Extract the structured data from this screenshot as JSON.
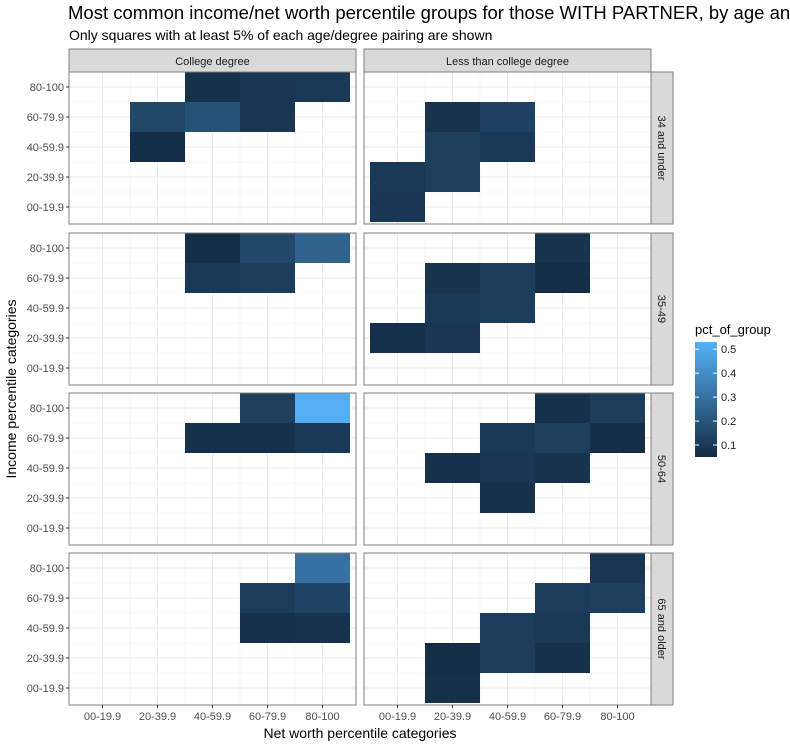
{
  "chart_data": {
    "type": "heatmap",
    "title": "Most common income/net worth percentile groups for those WITH PARTNER, by age and education",
    "subtitle": "Only squares with at least 5% of each age/degree pairing are shown",
    "xlabel": "Net worth percentile categories",
    "ylabel": "Income percentile categories",
    "x_categories": [
      "00-19.9",
      "20-39.9",
      "40-59.9",
      "60-79.9",
      "80-100"
    ],
    "y_categories": [
      "00-19.9",
      "20-39.9",
      "40-59.9",
      "60-79.9",
      "80-100"
    ],
    "column_facets": [
      "College degree",
      "Less than college degree"
    ],
    "row_facets": [
      "34 and under",
      "35-49",
      "50-64",
      "65 and older"
    ],
    "legend": {
      "title": "pct_of_group",
      "ticks": [
        0.1,
        0.2,
        0.3,
        0.4,
        0.5
      ],
      "low": 0.05,
      "high": 0.53,
      "low_color": "#132B43",
      "high_color": "#56B1F7",
      "placement": "right"
    },
    "grid": true,
    "panels": [
      {
        "col": "College degree",
        "row": "34 and under",
        "cells": [
          {
            "x": "40-59.9",
            "y": "80-100",
            "value": 0.07
          },
          {
            "x": "60-79.9",
            "y": "80-100",
            "value": 0.09
          },
          {
            "x": "80-100",
            "y": "80-100",
            "value": 0.1
          },
          {
            "x": "20-39.9",
            "y": "60-79.9",
            "value": 0.15
          },
          {
            "x": "40-59.9",
            "y": "60-79.9",
            "value": 0.19
          },
          {
            "x": "60-79.9",
            "y": "60-79.9",
            "value": 0.09
          },
          {
            "x": "20-39.9",
            "y": "40-59.9",
            "value": 0.06
          }
        ]
      },
      {
        "col": "Less than college degree",
        "row": "34 and under",
        "cells": [
          {
            "x": "20-39.9",
            "y": "60-79.9",
            "value": 0.08
          },
          {
            "x": "40-59.9",
            "y": "60-79.9",
            "value": 0.13
          },
          {
            "x": "20-39.9",
            "y": "40-59.9",
            "value": 0.12
          },
          {
            "x": "40-59.9",
            "y": "40-59.9",
            "value": 0.1
          },
          {
            "x": "00-19.9",
            "y": "20-39.9",
            "value": 0.1
          },
          {
            "x": "20-39.9",
            "y": "20-39.9",
            "value": 0.12
          },
          {
            "x": "00-19.9",
            "y": "00-19.9",
            "value": 0.09
          }
        ]
      },
      {
        "col": "College degree",
        "row": "35-49",
        "cells": [
          {
            "x": "40-59.9",
            "y": "80-100",
            "value": 0.06
          },
          {
            "x": "60-79.9",
            "y": "80-100",
            "value": 0.15
          },
          {
            "x": "80-100",
            "y": "80-100",
            "value": 0.25
          },
          {
            "x": "40-59.9",
            "y": "60-79.9",
            "value": 0.1
          },
          {
            "x": "60-79.9",
            "y": "60-79.9",
            "value": 0.11
          }
        ]
      },
      {
        "col": "Less than college degree",
        "row": "35-49",
        "cells": [
          {
            "x": "60-79.9",
            "y": "80-100",
            "value": 0.08
          },
          {
            "x": "20-39.9",
            "y": "60-79.9",
            "value": 0.08
          },
          {
            "x": "40-59.9",
            "y": "60-79.9",
            "value": 0.11
          },
          {
            "x": "60-79.9",
            "y": "60-79.9",
            "value": 0.06
          },
          {
            "x": "20-39.9",
            "y": "40-59.9",
            "value": 0.1
          },
          {
            "x": "40-59.9",
            "y": "40-59.9",
            "value": 0.11
          },
          {
            "x": "00-19.9",
            "y": "20-39.9",
            "value": 0.07
          },
          {
            "x": "20-39.9",
            "y": "20-39.9",
            "value": 0.09
          }
        ]
      },
      {
        "col": "College degree",
        "row": "50-64",
        "cells": [
          {
            "x": "60-79.9",
            "y": "80-100",
            "value": 0.12
          },
          {
            "x": "80-100",
            "y": "80-100",
            "value": 0.52
          },
          {
            "x": "40-59.9",
            "y": "60-79.9",
            "value": 0.07
          },
          {
            "x": "60-79.9",
            "y": "60-79.9",
            "value": 0.07
          },
          {
            "x": "80-100",
            "y": "60-79.9",
            "value": 0.1
          }
        ]
      },
      {
        "col": "Less than college degree",
        "row": "50-64",
        "cells": [
          {
            "x": "60-79.9",
            "y": "80-100",
            "value": 0.07
          },
          {
            "x": "80-100",
            "y": "80-100",
            "value": 0.11
          },
          {
            "x": "40-59.9",
            "y": "60-79.9",
            "value": 0.1
          },
          {
            "x": "60-79.9",
            "y": "60-79.9",
            "value": 0.12
          },
          {
            "x": "80-100",
            "y": "60-79.9",
            "value": 0.06
          },
          {
            "x": "20-39.9",
            "y": "40-59.9",
            "value": 0.07
          },
          {
            "x": "40-59.9",
            "y": "40-59.9",
            "value": 0.09
          },
          {
            "x": "60-79.9",
            "y": "40-59.9",
            "value": 0.08
          },
          {
            "x": "40-59.9",
            "y": "20-39.9",
            "value": 0.07
          }
        ]
      },
      {
        "col": "College degree",
        "row": "65 and older",
        "cells": [
          {
            "x": "80-100",
            "y": "80-100",
            "value": 0.3
          },
          {
            "x": "60-79.9",
            "y": "60-79.9",
            "value": 0.11
          },
          {
            "x": "80-100",
            "y": "60-79.9",
            "value": 0.14
          },
          {
            "x": "60-79.9",
            "y": "40-59.9",
            "value": 0.07
          },
          {
            "x": "80-100",
            "y": "40-59.9",
            "value": 0.08
          }
        ]
      },
      {
        "col": "Less than college degree",
        "row": "65 and older",
        "cells": [
          {
            "x": "80-100",
            "y": "80-100",
            "value": 0.09
          },
          {
            "x": "60-79.9",
            "y": "60-79.9",
            "value": 0.11
          },
          {
            "x": "80-100",
            "y": "60-79.9",
            "value": 0.12
          },
          {
            "x": "40-59.9",
            "y": "40-59.9",
            "value": 0.11
          },
          {
            "x": "60-79.9",
            "y": "40-59.9",
            "value": 0.1
          },
          {
            "x": "20-39.9",
            "y": "20-39.9",
            "value": 0.06
          },
          {
            "x": "40-59.9",
            "y": "20-39.9",
            "value": 0.11
          },
          {
            "x": "60-79.9",
            "y": "20-39.9",
            "value": 0.07
          },
          {
            "x": "20-39.9",
            "y": "00-19.9",
            "value": 0.07
          }
        ]
      }
    ]
  }
}
